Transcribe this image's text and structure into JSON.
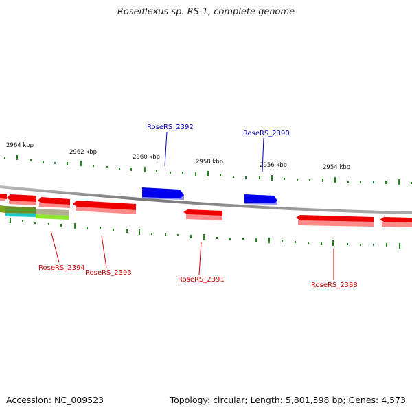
{
  "title": "Roseiflexus sp. RS-1, complete genome",
  "footer": {
    "accession": "Accession: NC_009523",
    "summary": "Topology: circular; Length: 5,801,598 bp; Genes: 4,573"
  },
  "colors": {
    "forward_gene": "#0000ee",
    "reverse_gene": "#ee0000",
    "forward_label": "#0000bb",
    "reverse_label": "#cc0000",
    "ticks": "#1a8a1a",
    "backbone": "#888888"
  },
  "scale_labels": [
    "2964 kbp",
    "2962 kbp",
    "2960 kbp",
    "2958 kbp",
    "2956 kbp",
    "2954 kbp"
  ],
  "gene_labels": {
    "forward": [
      "RoseRS_2392",
      "RoseRS_2390"
    ],
    "reverse": [
      "RoseRS_2394",
      "RoseRS_2393",
      "RoseRS_2391",
      "RoseRS_2388"
    ]
  }
}
